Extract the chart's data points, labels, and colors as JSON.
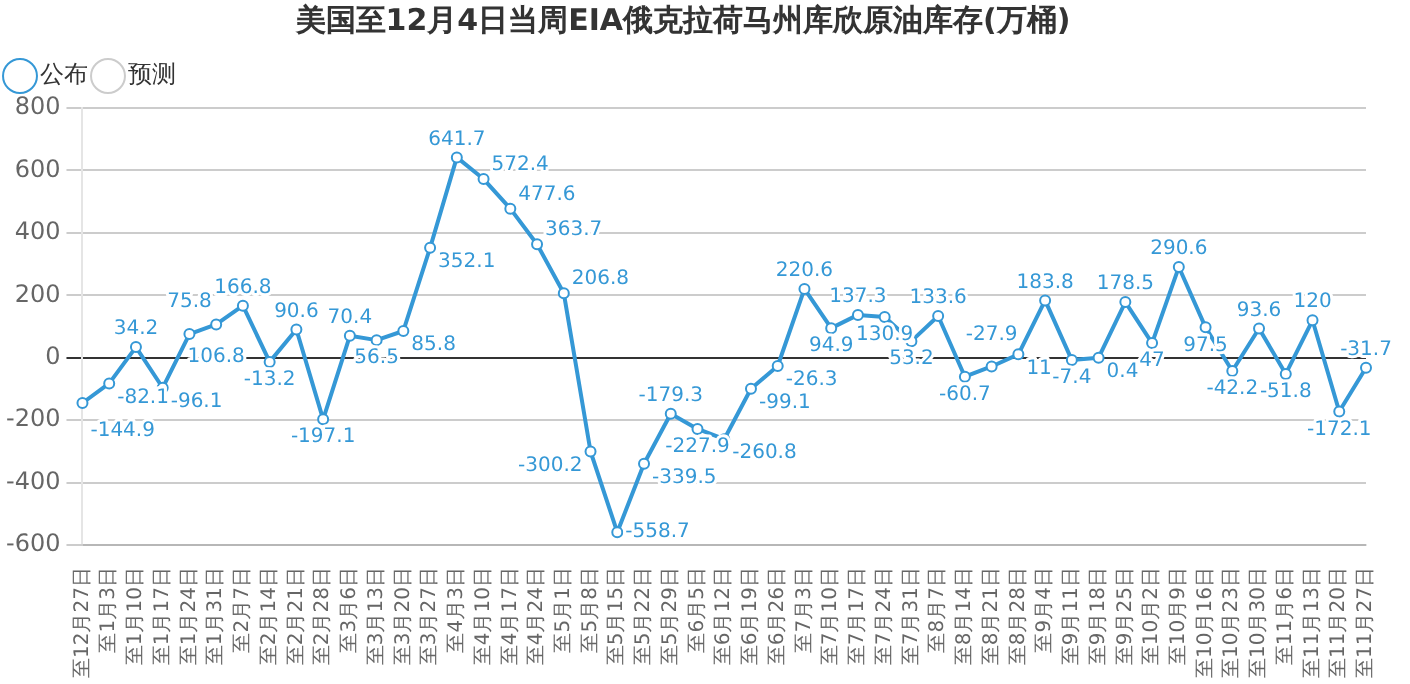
{
  "chart_data": {
    "type": "line",
    "title": "美国至12月4日当周EIA俄克拉荷马州库欣原油库存(万桶)",
    "categories": [
      "至12月27日",
      "至1月3日",
      "至1月10日",
      "至1月17日",
      "至1月24日",
      "至1月31日",
      "至2月7日",
      "至2月14日",
      "至2月21日",
      "至2月28日",
      "至3月6日",
      "至3月13日",
      "至3月20日",
      "至3月27日",
      "至4月3日",
      "至4月10日",
      "至4月17日",
      "至4月24日",
      "至5月1日",
      "至5月8日",
      "至5月15日",
      "至5月22日",
      "至5月29日",
      "至6月5日",
      "至6月12日",
      "至6月19日",
      "至6月26日",
      "至7月3日",
      "至7月10日",
      "至7月17日",
      "至7月24日",
      "至7月31日",
      "至8月7日",
      "至8月14日",
      "至8月21日",
      "至8月28日",
      "至9月4日",
      "至9月11日",
      "至9月18日",
      "至9月25日",
      "至10月2日",
      "至10月9日",
      "至10月16日",
      "至10月23日",
      "至10月30日",
      "至11月6日",
      "至11月13日",
      "至11月20日",
      "至11月27日"
    ],
    "series": [
      {
        "name": "公布",
        "color": "#3598d6",
        "values": [
          -144.9,
          -82.1,
          34.2,
          -96.1,
          75.8,
          106.8,
          166.8,
          -13.2,
          90.6,
          -197.1,
          70.4,
          56.5,
          85.8,
          352.1,
          641.7,
          572.4,
          477.6,
          363.7,
          206.8,
          -300.2,
          -558.7,
          -339.5,
          -179.3,
          -227.9,
          -260.8,
          -99.1,
          -26.3,
          220.6,
          94.9,
          137.3,
          130.9,
          53.2,
          133.6,
          -60.7,
          -27.9,
          11,
          183.8,
          -7.4,
          0.4,
          178.5,
          47,
          290.6,
          97.5,
          -42.2,
          93.6,
          -51.8,
          120,
          -172.1,
          -31.7
        ]
      },
      {
        "name": "预测",
        "color": "#cccccc",
        "values": [
          null,
          null,
          null,
          null,
          null,
          null,
          null,
          null,
          null,
          null,
          null,
          null,
          null,
          null,
          null,
          null,
          null,
          null,
          null,
          null,
          null,
          null,
          null,
          null,
          null,
          null,
          null,
          null,
          null,
          null,
          null,
          null,
          null,
          null,
          null,
          null,
          null,
          null,
          null,
          null,
          null,
          null,
          null,
          null,
          null,
          null,
          null,
          null,
          null
        ]
      }
    ],
    "ylim": [
      -600,
      800
    ],
    "yticks": [
      -600,
      -400,
      -200,
      0,
      200,
      400,
      600,
      800
    ],
    "grid": "y",
    "legend": "top left",
    "marker": "circle",
    "line_style": "solid",
    "data_labels": true
  }
}
